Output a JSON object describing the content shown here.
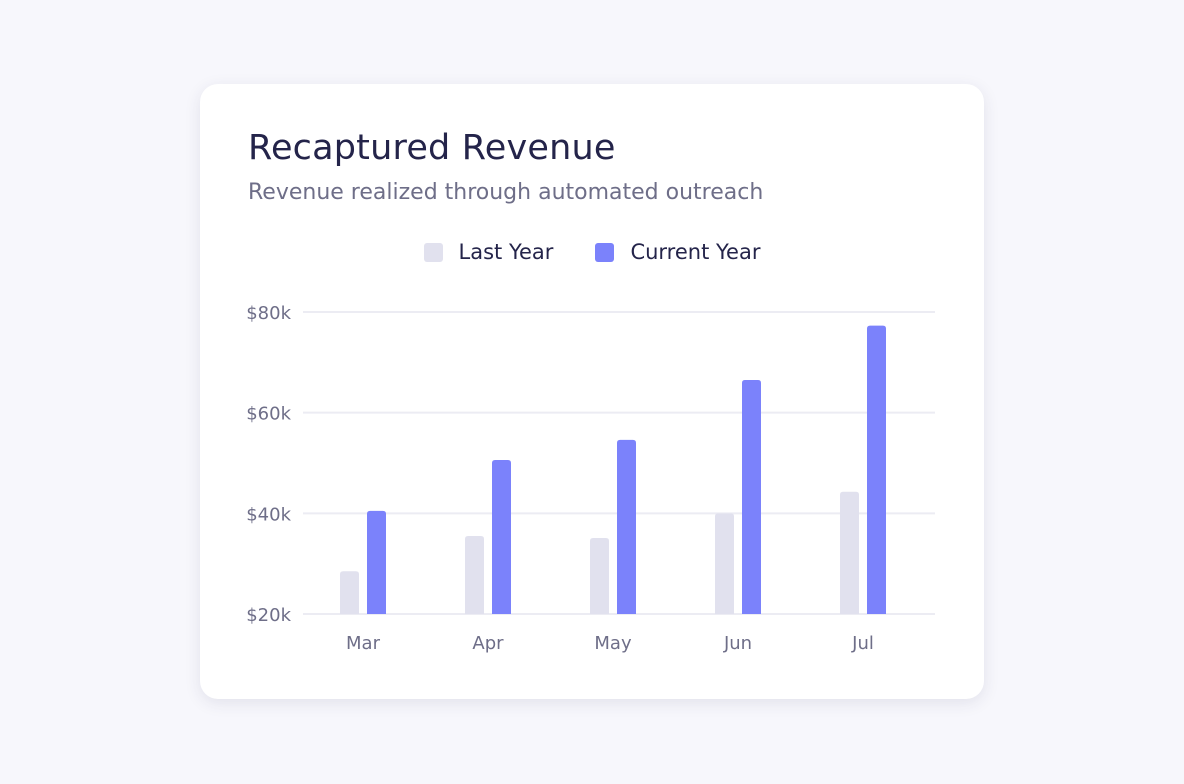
{
  "chart_data": {
    "type": "bar",
    "title": "Recaptured Revenue",
    "subtitle": "Revenue realized through automated outreach",
    "xlabel": "",
    "ylabel": "",
    "categories": [
      "Mar",
      "Apr",
      "May",
      "Jun",
      "Jul"
    ],
    "series": [
      {
        "name": "Last Year",
        "color": "#e1e1ee",
        "values": [
          28.5,
          35.5,
          35.1,
          40.0,
          44.3
        ]
      },
      {
        "name": "Current Year",
        "color": "#7b82fb",
        "values": [
          40.5,
          50.6,
          54.6,
          66.5,
          77.3
        ]
      }
    ],
    "unit": "thousands USD",
    "ylim": [
      20,
      80
    ],
    "yticks": [
      20,
      40,
      60,
      80
    ],
    "ytick_labels": [
      "$20k",
      "$40k",
      "$60k",
      "$80k"
    ],
    "grid": true,
    "legend_position": "top-center"
  }
}
